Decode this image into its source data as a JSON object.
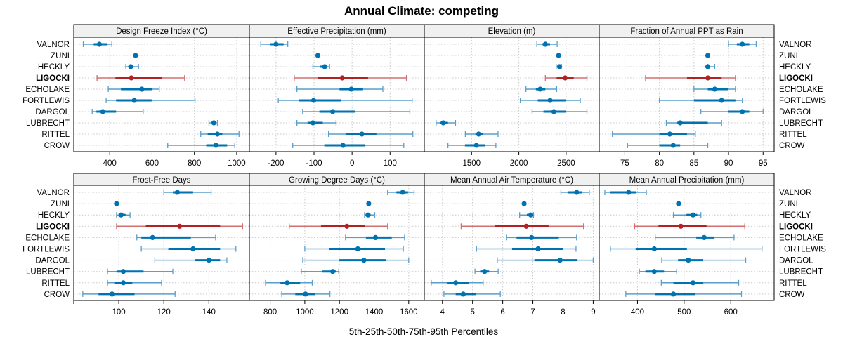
{
  "chart_data": {
    "type": "dot-interval",
    "title": "Annual Climate: competing",
    "xlabel": "5th-25th-50th-75th-95th Percentiles",
    "grid": true,
    "rows": [
      "VALNOR",
      "ZUNI",
      "HECKLY",
      "LIGOCKI",
      "ECHOLAKE",
      "FORTLEWIS",
      "DARGOL",
      "LUBRECHT",
      "RITTEL",
      "CROW"
    ],
    "highlight_row": "LIGOCKI",
    "colors": {
      "normal": "#0072B2",
      "normal_whisker": "#5A9FCC",
      "highlight": "#B22222",
      "highlight_whisker": "#D07070",
      "strip": "#F0F0F0",
      "grid": "#C8C8C8"
    },
    "percentile_keys": [
      "p5",
      "p25",
      "p50",
      "p75",
      "p95"
    ],
    "panels": [
      {
        "name": "Design Freeze Index (°C)",
        "xlim": [
          230,
          1060
        ],
        "ticks": [
          400,
          600,
          800,
          1000
        ],
        "values": [
          [
            275,
            324,
            351,
            390,
            410
          ],
          [
            518,
            520,
            522,
            524,
            526
          ],
          [
            476,
            490,
            499,
            510,
            536
          ],
          [
            340,
            427,
            502,
            645,
            754
          ],
          [
            393,
            453,
            552,
            602,
            634
          ],
          [
            383,
            430,
            516,
            598,
            803
          ],
          [
            317,
            337,
            367,
            430,
            558
          ],
          [
            869,
            880,
            892,
            900,
            909
          ],
          [
            830,
            863,
            909,
            932,
            1011
          ],
          [
            674,
            856,
            902,
            955,
            991
          ]
        ]
      },
      {
        "name": "Effective Precipitation (mm)",
        "xlim": [
          -270,
          190
        ],
        "ticks": [
          -200,
          -100,
          0,
          100
        ],
        "values": [
          [
            -240,
            -215,
            -200,
            -180,
            -169
          ],
          [
            -92,
            -91,
            -90,
            -89,
            -88
          ],
          [
            -103,
            -85,
            -72,
            -65,
            -59
          ],
          [
            -152,
            -90,
            -26,
            42,
            143
          ],
          [
            -145,
            -33,
            -2,
            29,
            81
          ],
          [
            -194,
            -139,
            -101,
            -29,
            158
          ],
          [
            -130,
            -86,
            -51,
            7,
            152
          ],
          [
            -145,
            -117,
            -103,
            -77,
            -42
          ],
          [
            -62,
            -17,
            26,
            64,
            160
          ],
          [
            -156,
            -73,
            -24,
            35,
            136
          ]
        ]
      },
      {
        "name": "Elevation (m)",
        "xlim": [
          1000,
          2850
        ],
        "ticks": [
          1500,
          2000,
          2500
        ],
        "values": [
          [
            2190,
            2250,
            2280,
            2330,
            2405
          ],
          [
            2415,
            2418,
            2420,
            2422,
            2425
          ],
          [
            2395,
            2420,
            2430,
            2440,
            2450
          ],
          [
            2280,
            2400,
            2490,
            2580,
            2720
          ],
          [
            2075,
            2180,
            2225,
            2280,
            2400
          ],
          [
            2015,
            2200,
            2330,
            2500,
            2650
          ],
          [
            2140,
            2260,
            2370,
            2500,
            2720
          ],
          [
            1125,
            1170,
            1200,
            1250,
            1330
          ],
          [
            1434,
            1540,
            1574,
            1620,
            1780
          ],
          [
            1250,
            1430,
            1551,
            1640,
            1757
          ]
        ]
      },
      {
        "name": "Fraction of Annual PPT as Rain",
        "xlim": [
          71.3,
          96.6
        ],
        "ticks": [
          75,
          80,
          85,
          90,
          95
        ],
        "values": [
          [
            90,
            91.2,
            92,
            93,
            94
          ],
          [
            86.9,
            87,
            87,
            87,
            87.1
          ],
          [
            87,
            87,
            87,
            87.2,
            88
          ],
          [
            78,
            84,
            87,
            89,
            91
          ],
          [
            85,
            87,
            88,
            90,
            91
          ],
          [
            80,
            85,
            89,
            91,
            92
          ],
          [
            86,
            90,
            92,
            93,
            95
          ],
          [
            81,
            82.5,
            83,
            87,
            89
          ],
          [
            73.2,
            80,
            81.5,
            84,
            85.2
          ],
          [
            75.4,
            80,
            82,
            83,
            87
          ]
        ]
      },
      {
        "name": "Frost-Free Days",
        "xlim": [
          80,
          158
        ],
        "ticks": [
          80,
          100,
          120,
          140
        ],
        "tick_labels": [
          "",
          "100",
          "120",
          "140"
        ],
        "values": [
          [
            120,
            124,
            126,
            133,
            141
          ],
          [
            98.8,
            99,
            99,
            99,
            99.2
          ],
          [
            99,
            100,
            101,
            103,
            105
          ],
          [
            99,
            112,
            127,
            145,
            155
          ],
          [
            108,
            110,
            115,
            132,
            143
          ],
          [
            110,
            122,
            133,
            145,
            152
          ],
          [
            116,
            134,
            140,
            145,
            148
          ],
          [
            95,
            99,
            102,
            111,
            124
          ],
          [
            95,
            98,
            102,
            106,
            119
          ],
          [
            84,
            91,
            97,
            107,
            125
          ]
        ]
      },
      {
        "name": "Growing Degree Days (°C)",
        "xlim": [
          680,
          1690
        ],
        "ticks": [
          800,
          1000,
          1200,
          1400,
          1600
        ],
        "values": [
          [
            1478,
            1529,
            1565,
            1596,
            1631
          ],
          [
            1366,
            1368,
            1369,
            1370,
            1372
          ],
          [
            1345,
            1355,
            1365,
            1380,
            1404
          ],
          [
            910,
            1094,
            1243,
            1349,
            1478
          ],
          [
            1235,
            1353,
            1408,
            1502,
            1576
          ],
          [
            1000,
            1141,
            1306,
            1463,
            1569
          ],
          [
            988,
            1200,
            1341,
            1467,
            1600
          ],
          [
            980,
            1098,
            1161,
            1180,
            1196
          ],
          [
            773,
            859,
            898,
            973,
            1043
          ],
          [
            867,
            945,
            1004,
            1059,
            1145
          ]
        ]
      },
      {
        "name": "Mean Annual Air Temperature (°C)",
        "xlim": [
          3.4,
          9.2
        ],
        "ticks": [
          4,
          5,
          6,
          7,
          8,
          9
        ],
        "values": [
          [
            7.93,
            8.15,
            8.45,
            8.62,
            8.87
          ],
          [
            6.69,
            6.7,
            6.71,
            6.72,
            6.73
          ],
          [
            6.56,
            6.8,
            6.93,
            6.98,
            7.02
          ],
          [
            4.62,
            5.75,
            6.78,
            7.52,
            8.68
          ],
          [
            6.12,
            6.46,
            6.96,
            7.86,
            8.45
          ],
          [
            5.13,
            6.31,
            7.17,
            8.0,
            8.43
          ],
          [
            5.82,
            7.05,
            7.9,
            8.48,
            9.0
          ],
          [
            5.08,
            5.25,
            5.4,
            5.55,
            5.85
          ],
          [
            3.63,
            4.17,
            4.44,
            4.89,
            5.35
          ],
          [
            4.05,
            4.44,
            4.69,
            5.11,
            5.92
          ]
        ]
      },
      {
        "name": "Mean Annual Precipitation (mm)",
        "xlim": [
          318,
          693
        ],
        "ticks": [
          400,
          500,
          600
        ],
        "values": [
          [
            330,
            342,
            381,
            397,
            419
          ],
          [
            486,
            487,
            488,
            489,
            490
          ],
          [
            477,
            505,
            519,
            528,
            536
          ],
          [
            394,
            445,
            493,
            548,
            630
          ],
          [
            438,
            526,
            543,
            564,
            607
          ],
          [
            342,
            396,
            436,
            506,
            667
          ],
          [
            452,
            487,
            509,
            541,
            632
          ],
          [
            404,
            417,
            436,
            457,
            484
          ],
          [
            451,
            477,
            519,
            541,
            617
          ],
          [
            375,
            438,
            477,
            523,
            623
          ]
        ]
      }
    ]
  }
}
